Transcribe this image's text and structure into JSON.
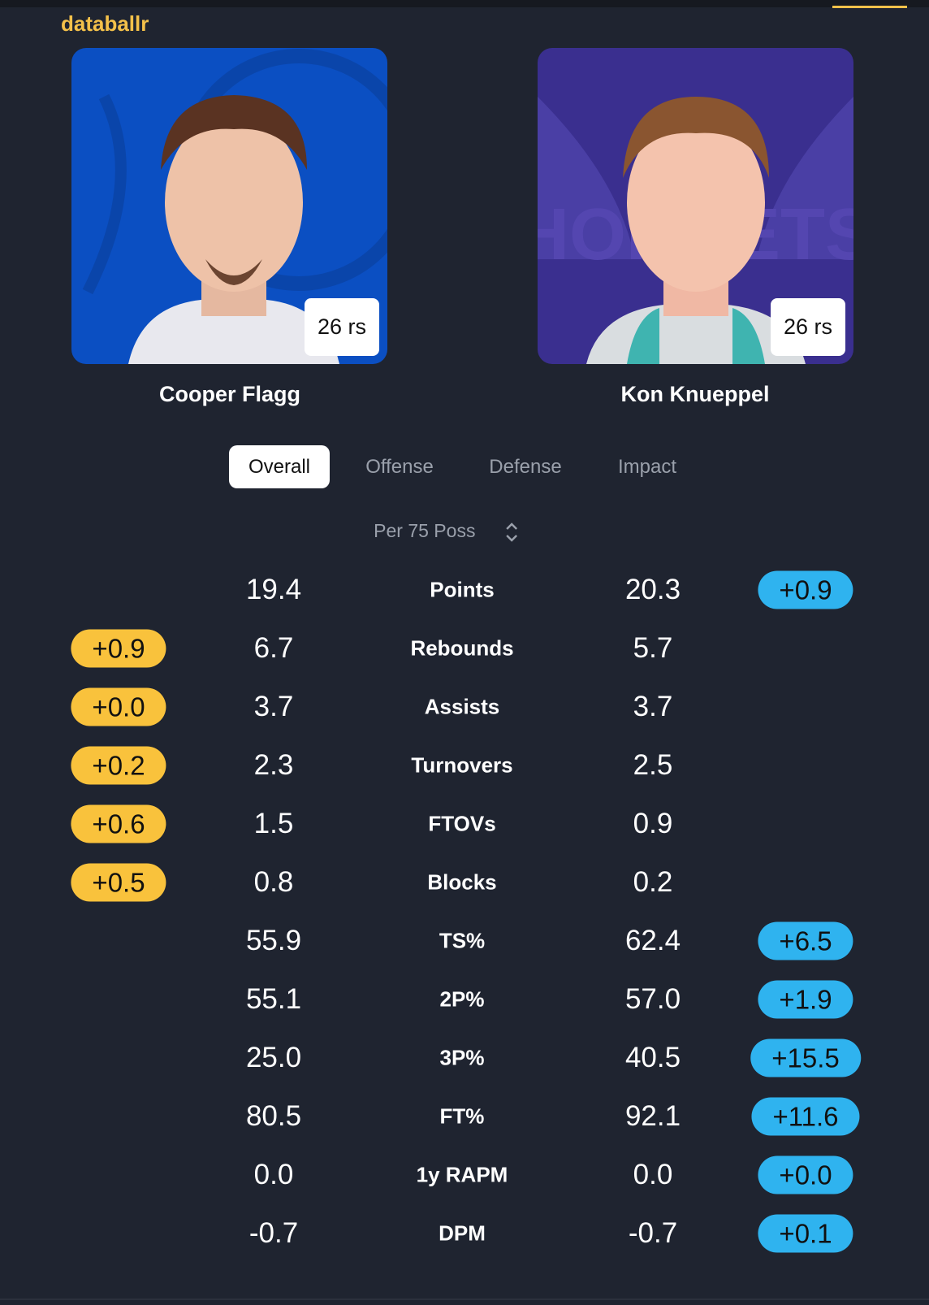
{
  "brand": "databallr",
  "players": [
    {
      "name": "Cooper Flagg",
      "games": "26 rs"
    },
    {
      "name": "Kon Knueppel",
      "games": "26 rs"
    }
  ],
  "tabs": [
    "Overall",
    "Offense",
    "Defense",
    "Impact"
  ],
  "active_tab": 0,
  "selector": "Per 75 Poss",
  "rows": [
    {
      "label": "Points",
      "left": "19.4",
      "right": "20.3",
      "right_diff": "+0.9"
    },
    {
      "label": "Rebounds",
      "left": "6.7",
      "right": "5.7",
      "left_diff": "+0.9"
    },
    {
      "label": "Assists",
      "left": "3.7",
      "right": "3.7",
      "left_diff": "+0.0"
    },
    {
      "label": "Turnovers",
      "left": "2.3",
      "right": "2.5",
      "left_diff": "+0.2"
    },
    {
      "label": "FTOVs",
      "left": "1.5",
      "right": "0.9",
      "left_diff": "+0.6"
    },
    {
      "label": "Blocks",
      "left": "0.8",
      "right": "0.2",
      "left_diff": "+0.5"
    },
    {
      "label": "TS%",
      "left": "55.9",
      "right": "62.4",
      "right_diff": "+6.5"
    },
    {
      "label": "2P%",
      "left": "55.1",
      "right": "57.0",
      "right_diff": "+1.9"
    },
    {
      "label": "3P%",
      "left": "25.0",
      "right": "40.5",
      "right_diff": "+15.5"
    },
    {
      "label": "FT%",
      "left": "80.5",
      "right": "92.1",
      "right_diff": "+11.6"
    },
    {
      "label": "1y RAPM",
      "left": "0.0",
      "right": "0.0",
      "right_diff": "+0.0"
    },
    {
      "label": "DPM",
      "left": "-0.7",
      "right": "-0.7",
      "right_diff": "+0.1"
    }
  ]
}
